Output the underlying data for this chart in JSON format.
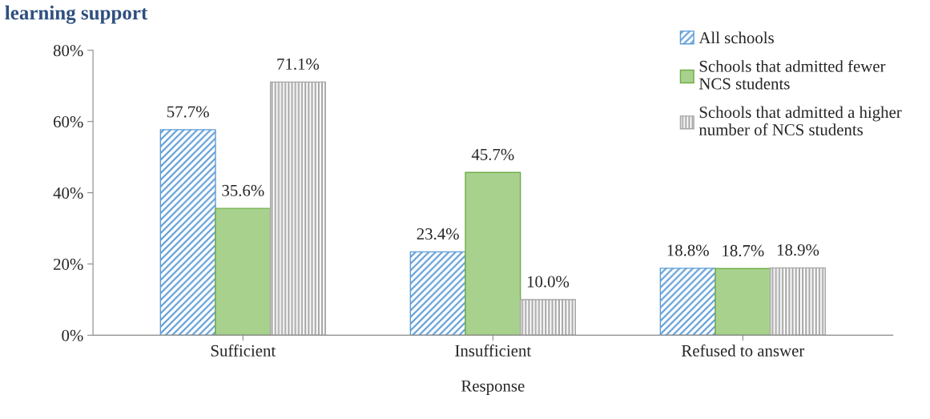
{
  "chart_data": {
    "type": "bar",
    "title": "learning support",
    "xlabel": "Response",
    "categories": [
      "Sufficient",
      "Insufficient",
      "Refused to answer"
    ],
    "series": [
      {
        "name": "All schools",
        "color": "#5b9bd5",
        "values": [
          57.7,
          23.4,
          18.8
        ],
        "value_labels": [
          "57.7%",
          "23.4%",
          "18.8%"
        ]
      },
      {
        "name": "Schools that admitted fewer\nNCS students",
        "color": "#a9d18e",
        "values": [
          35.6,
          45.7,
          18.7
        ],
        "value_labels": [
          "35.6%",
          "45.7%",
          "18.7%"
        ]
      },
      {
        "name": "Schools that admitted a higher\nnumber of NCS students",
        "color": "#a6a6a6",
        "values": [
          71.1,
          10.0,
          18.9
        ],
        "value_labels": [
          "71.1%",
          "10.0%",
          "18.9%"
        ]
      }
    ],
    "ylim": [
      0,
      80
    ],
    "yticks": [
      {
        "value": 0,
        "label": "0%"
      },
      {
        "value": 20,
        "label": "20%"
      },
      {
        "value": 40,
        "label": "40%"
      },
      {
        "value": 60,
        "label": "60%"
      },
      {
        "value": 80,
        "label": "80%"
      }
    ],
    "grid": false,
    "legend": "top right"
  }
}
